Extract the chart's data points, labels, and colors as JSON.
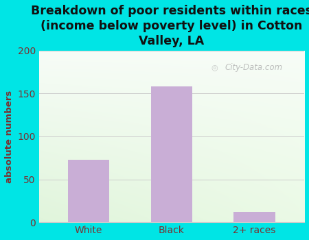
{
  "categories": [
    "White",
    "Black",
    "2+ races"
  ],
  "values": [
    73,
    158,
    12
  ],
  "bar_color": "#c9aed6",
  "title": "Breakdown of poor residents within races\n(income below poverty level) in Cotton\nValley, LA",
  "ylabel": "absolute numbers",
  "ylim": [
    0,
    200
  ],
  "yticks": [
    0,
    50,
    100,
    150,
    200
  ],
  "background_color": "#00e5e5",
  "grid_color": "#cccccc",
  "title_fontsize": 12.5,
  "ylabel_fontsize": 9.5,
  "tick_fontsize": 10,
  "title_color": "#111111",
  "axis_label_color": "#7a3030",
  "watermark": "City-Data.com"
}
